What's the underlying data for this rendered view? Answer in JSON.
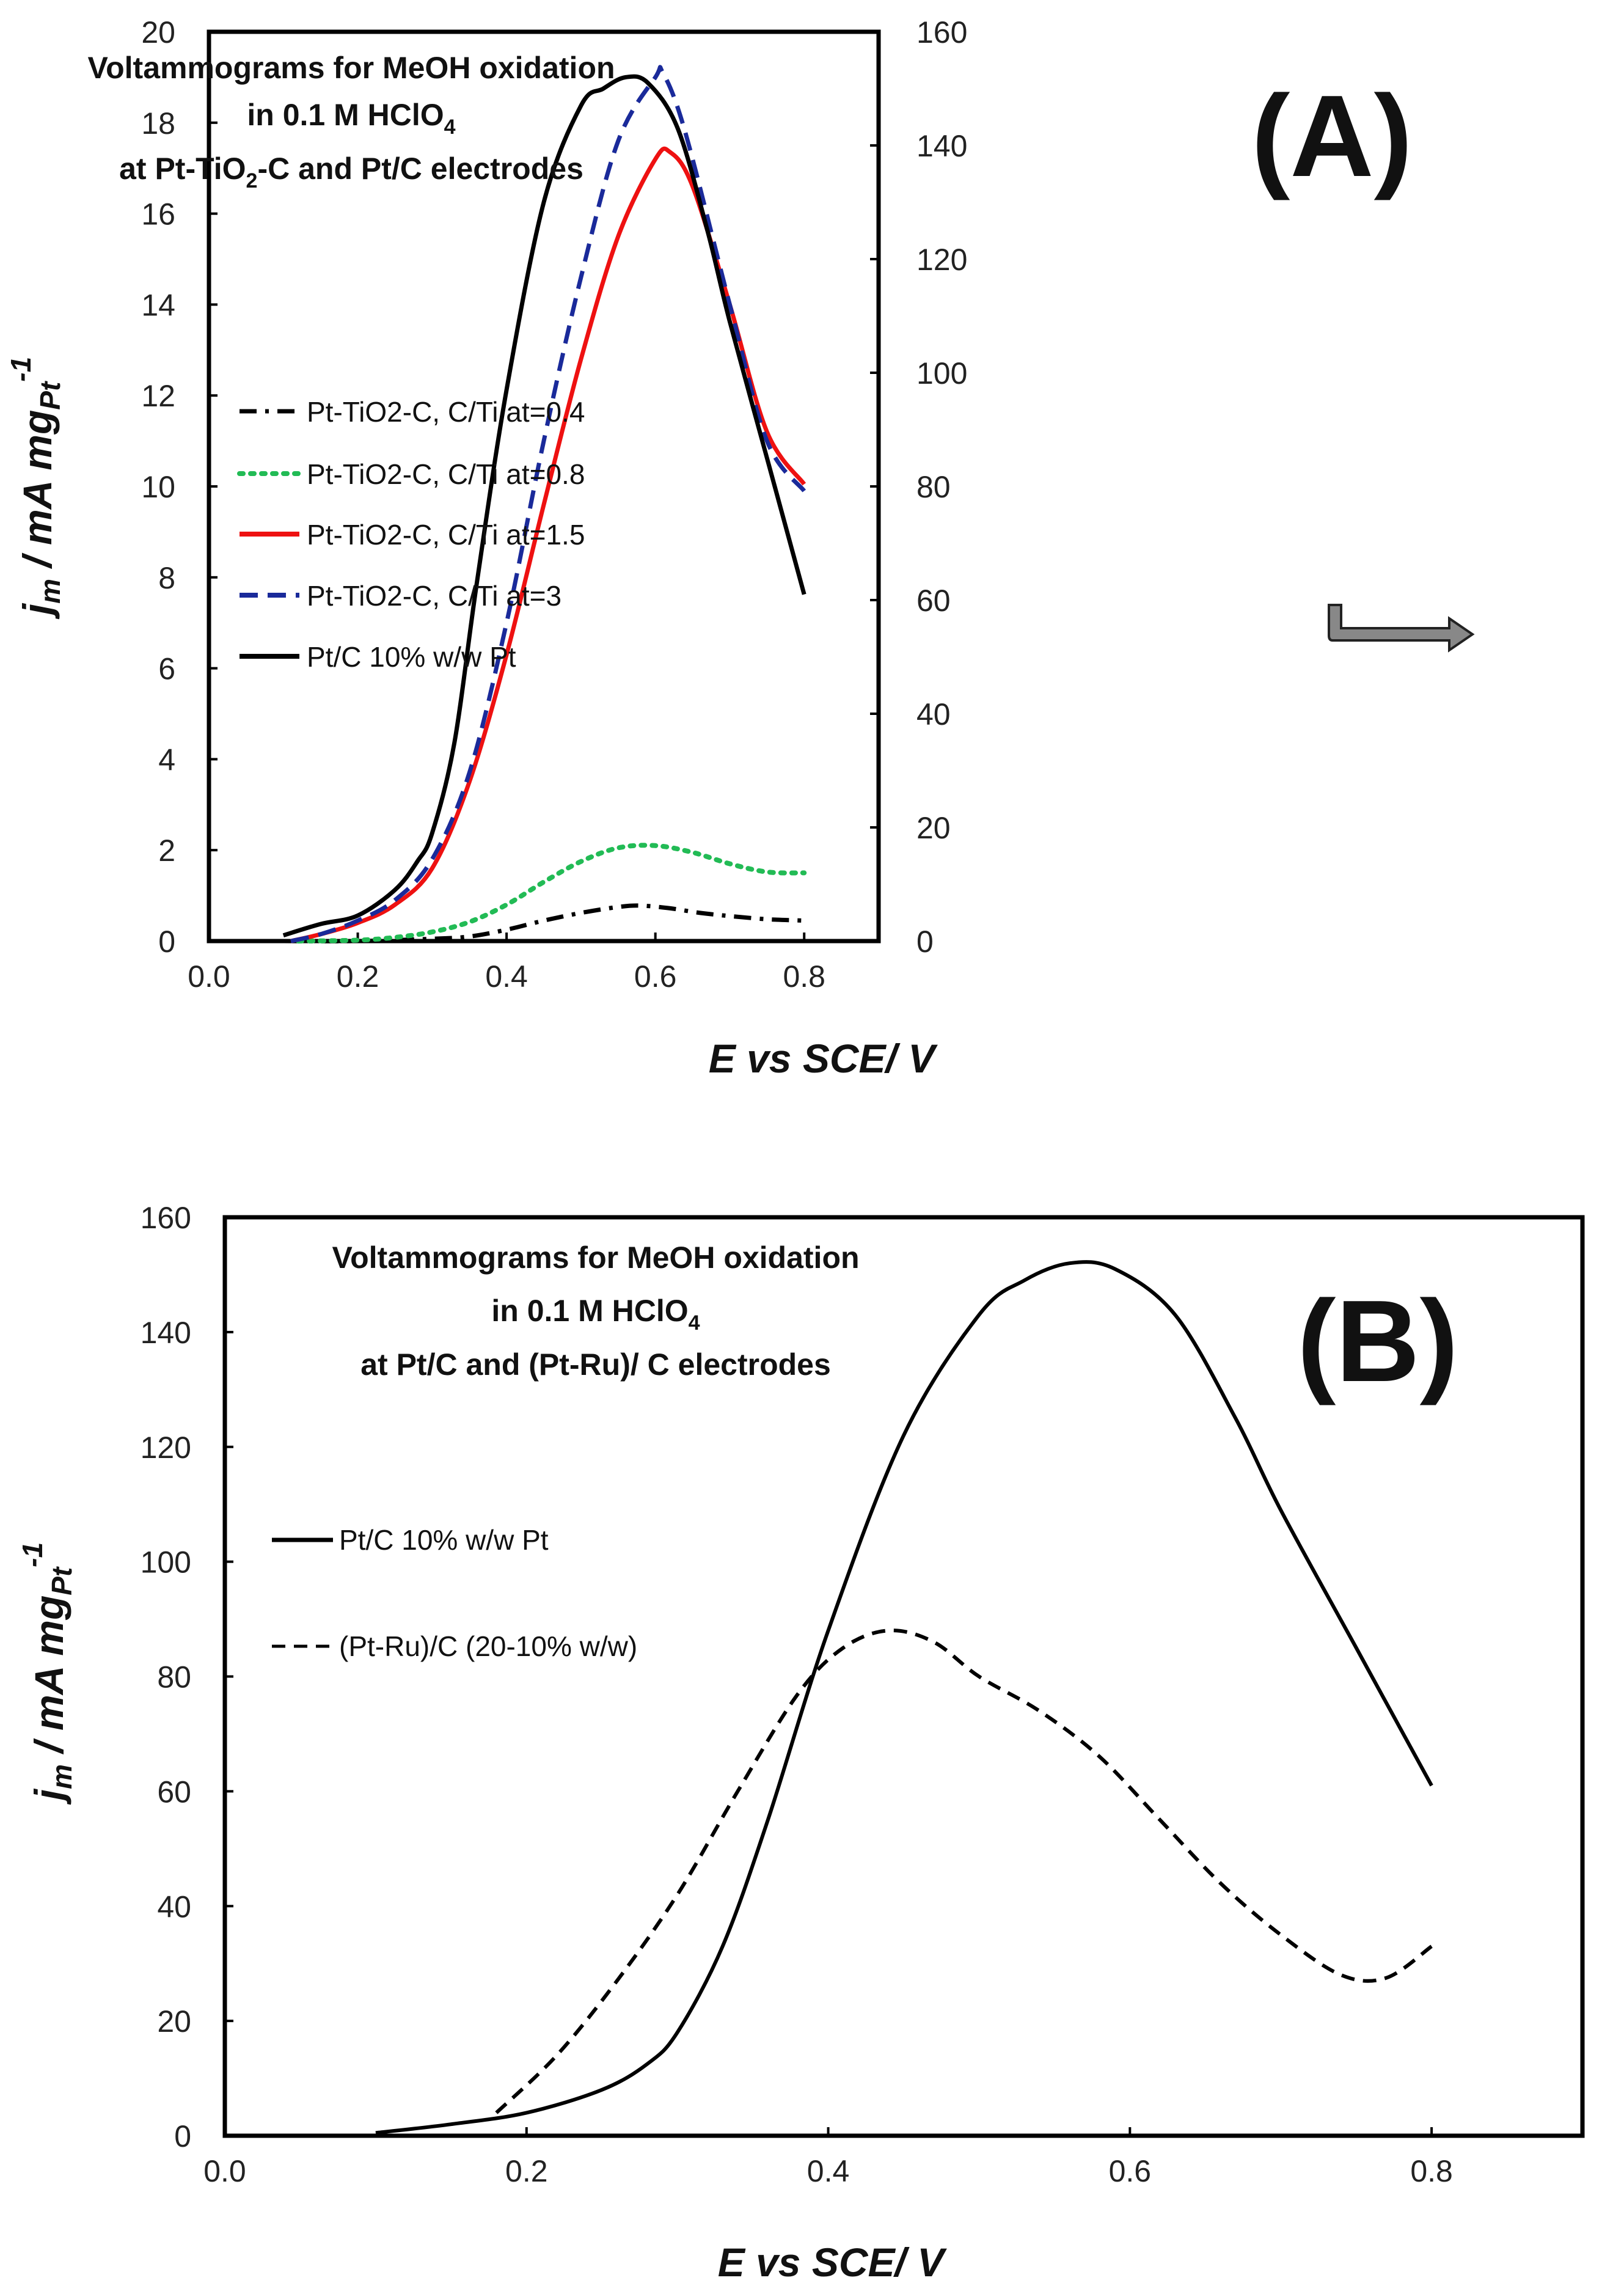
{
  "chart_data": [
    {
      "type": "line",
      "panel_label": "(A)",
      "title_lines": [
        "Voltammograms for MeOH oxidation",
        "in 0.1 M HClO",
        "at Pt-TiO",
        "-C and Pt/C electrodes"
      ],
      "title_sub": [
        "4",
        "2"
      ],
      "xlabel": {
        "main": "E",
        "rest": "  vs SCE/ V"
      },
      "ylabel": {
        "j": "j",
        "m": "m",
        "unit": " / mA mg",
        "pt": "Pt",
        "exp": "-1"
      },
      "xlim": [
        0.0,
        0.9
      ],
      "ylim": [
        0,
        20
      ],
      "y2lim": [
        0,
        160
      ],
      "xticks": [
        "0.0",
        "0.2",
        "0.4",
        "0.6",
        "0.8"
      ],
      "yticks": [
        "0",
        "2",
        "4",
        "6",
        "8",
        "10",
        "12",
        "14",
        "16",
        "18",
        "20"
      ],
      "y2ticks": [
        "0",
        "20",
        "40",
        "60",
        "80",
        "100",
        "120",
        "140",
        "160"
      ],
      "series": [
        {
          "name": "Pt-TiO2-C, C/Ti at=0.4",
          "color": "#000000",
          "dash": "dashdot",
          "axis": "left",
          "x": [
            0.1,
            0.2,
            0.3,
            0.35,
            0.4,
            0.45,
            0.5,
            0.55,
            0.58,
            0.62,
            0.66,
            0.7,
            0.75,
            0.8
          ],
          "y": [
            0.0,
            0.0,
            0.05,
            0.1,
            0.25,
            0.45,
            0.62,
            0.75,
            0.78,
            0.72,
            0.62,
            0.55,
            0.48,
            0.45
          ]
        },
        {
          "name": "Pt-TiO2-C, C/Ti at=0.8",
          "color": "#22bb55",
          "dash": "dot",
          "axis": "left",
          "x": [
            0.12,
            0.2,
            0.25,
            0.3,
            0.35,
            0.4,
            0.45,
            0.5,
            0.55,
            0.6,
            0.65,
            0.7,
            0.75,
            0.8
          ],
          "y": [
            0.0,
            0.02,
            0.08,
            0.2,
            0.42,
            0.8,
            1.3,
            1.75,
            2.05,
            2.1,
            1.95,
            1.7,
            1.52,
            1.5
          ]
        },
        {
          "name": "Pt-TiO2-C, C/Ti at=1.5",
          "color": "#ee1111",
          "dash": "solid",
          "axis": "left",
          "x": [
            0.11,
            0.15,
            0.2,
            0.25,
            0.3,
            0.35,
            0.4,
            0.45,
            0.5,
            0.55,
            0.6,
            0.62,
            0.65,
            0.7,
            0.75,
            0.8
          ],
          "y": [
            0.0,
            0.15,
            0.4,
            0.8,
            1.6,
            3.5,
            6.3,
            9.6,
            12.8,
            15.5,
            17.2,
            17.35,
            16.6,
            14.0,
            11.2,
            10.05
          ]
        },
        {
          "name": "Pt-TiO2-C, C/Ti at=3",
          "color": "#1a2a9a",
          "dash": "dash",
          "axis": "left",
          "x": [
            0.11,
            0.15,
            0.2,
            0.25,
            0.3,
            0.35,
            0.4,
            0.45,
            0.5,
            0.55,
            0.6,
            0.61,
            0.64,
            0.7,
            0.75,
            0.8
          ],
          "y": [
            0.0,
            0.15,
            0.45,
            0.9,
            1.8,
            3.7,
            7.0,
            11.0,
            14.6,
            17.6,
            19.0,
            19.1,
            17.8,
            14.0,
            11.0,
            9.9
          ]
        },
        {
          "name": "Pt/C 10% w/w Pt",
          "color": "#000000",
          "dash": "solid",
          "axis": "right",
          "x": [
            0.1,
            0.15,
            0.2,
            0.25,
            0.28,
            0.3,
            0.33,
            0.36,
            0.4,
            0.45,
            0.5,
            0.53,
            0.56,
            0.59,
            0.63,
            0.67,
            0.7,
            0.75,
            0.8
          ],
          "y": [
            1,
            3,
            4.5,
            9,
            14,
            19,
            35,
            63,
            97,
            130,
            147,
            150,
            152,
            151,
            143,
            125,
            109,
            85,
            61
          ]
        }
      ]
    },
    {
      "type": "line",
      "panel_label": "(B)",
      "title_lines": [
        "Voltammograms for MeOH oxidation",
        "in 0.1 M HClO",
        "at Pt/C and (Pt-Ru)/ C electrodes"
      ],
      "title_sub": [
        "4"
      ],
      "xlabel": {
        "main": "E",
        "rest": "  vs SCE/ V"
      },
      "ylabel": {
        "j": "j",
        "m": "m",
        "unit": " / mA mg",
        "pt": "Pt",
        "exp": "-1"
      },
      "xlim": [
        0.0,
        0.9
      ],
      "ylim": [
        0,
        160
      ],
      "xticks": [
        "0.0",
        "0.2",
        "0.4",
        "0.6",
        "0.8"
      ],
      "yticks": [
        "0",
        "20",
        "40",
        "60",
        "80",
        "100",
        "120",
        "140",
        "160"
      ],
      "series": [
        {
          "name": "Pt/C 10% w/w Pt",
          "color": "#000000",
          "dash": "solid",
          "axis": "left",
          "x": [
            0.1,
            0.15,
            0.2,
            0.25,
            0.28,
            0.3,
            0.33,
            0.36,
            0.4,
            0.45,
            0.5,
            0.53,
            0.56,
            0.59,
            0.63,
            0.67,
            0.7,
            0.75,
            0.8
          ],
          "y": [
            0.5,
            2.0,
            4.0,
            8.0,
            12.5,
            18.0,
            33.0,
            55.0,
            88.0,
            122.0,
            143.0,
            149.0,
            152.0,
            151.0,
            143.0,
            125.0,
            109.0,
            85.0,
            61.0
          ]
        },
        {
          "name": "(Pt-Ru)/C (20-10% w/w)",
          "color": "#000000",
          "dash": "dash",
          "axis": "left",
          "x": [
            0.18,
            0.22,
            0.26,
            0.3,
            0.34,
            0.38,
            0.41,
            0.44,
            0.47,
            0.5,
            0.54,
            0.58,
            0.62,
            0.66,
            0.7,
            0.74,
            0.77,
            0.8
          ],
          "y": [
            4.0,
            14.0,
            27.0,
            42.0,
            60.0,
            77.0,
            85.0,
            88.0,
            86.0,
            80.0,
            74.0,
            66.0,
            55.0,
            44.0,
            35.0,
            28.0,
            27.5,
            33.0
          ]
        }
      ]
    }
  ]
}
